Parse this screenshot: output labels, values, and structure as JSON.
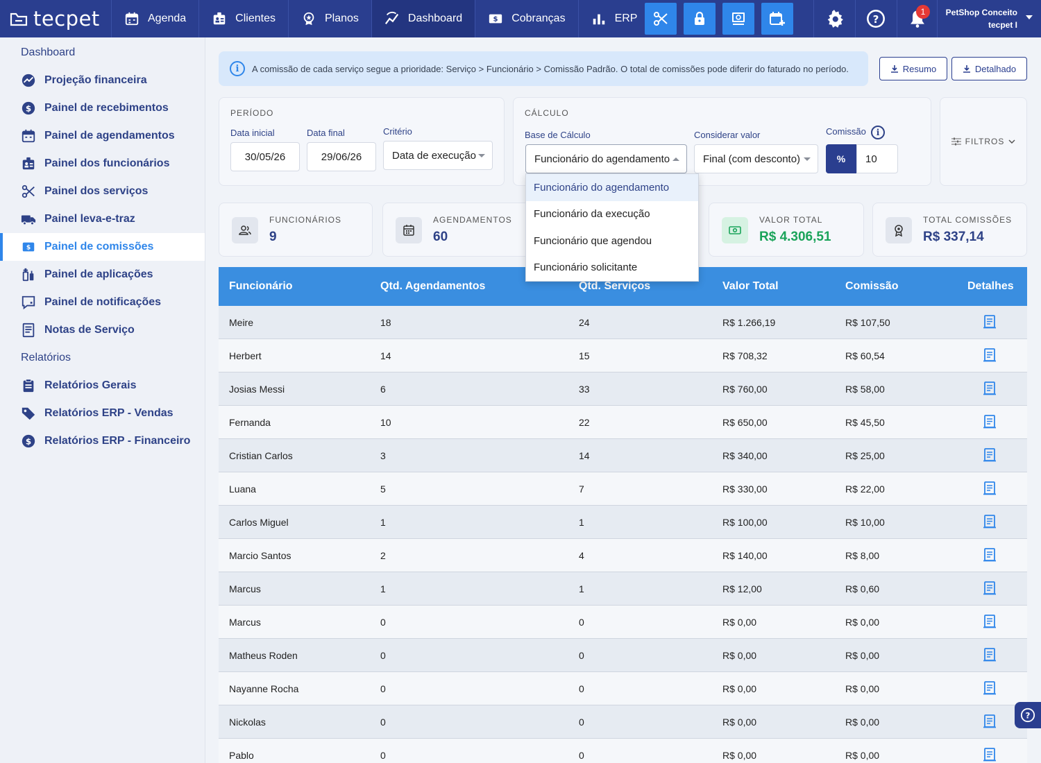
{
  "brand": {
    "logo_text": "tecpet"
  },
  "nav": {
    "items": [
      {
        "label": "Agenda",
        "icon": "calendar-icon"
      },
      {
        "label": "Clientes",
        "icon": "clients-icon"
      },
      {
        "label": "Planos",
        "icon": "plans-icon"
      },
      {
        "label": "Dashboard",
        "icon": "dashboard-icon",
        "active": true
      },
      {
        "label": "Cobranças",
        "icon": "billing-icon"
      },
      {
        "label": "ERP",
        "icon": "erp-icon"
      }
    ],
    "quick_actions": [
      "scissors-icon",
      "lock-icon",
      "monitor-icon",
      "calendar-add-icon"
    ],
    "notification_count": "1",
    "user": {
      "company": "PetShop Conceito",
      "name": "tecpet I"
    }
  },
  "sidebar": {
    "dashboard_section": "Dashboard",
    "dashboard_items": [
      {
        "label": "Projeção financeira",
        "icon": "chart-up-icon"
      },
      {
        "label": "Painel de recebimentos",
        "icon": "dollar-circle-icon"
      },
      {
        "label": "Painel de agendamentos",
        "icon": "calendar-icon"
      },
      {
        "label": "Painel dos funcionários",
        "icon": "badge-icon"
      },
      {
        "label": "Painel dos serviços",
        "icon": "scissors-icon"
      },
      {
        "label": "Painel leva-e-traz",
        "icon": "truck-icon"
      },
      {
        "label": "Painel de comissões",
        "icon": "money-icon",
        "active": true
      },
      {
        "label": "Painel de aplicações",
        "icon": "syringe-icon"
      },
      {
        "label": "Painel de notificações",
        "icon": "chat-icon"
      },
      {
        "label": "Notas de Serviço",
        "icon": "document-icon"
      }
    ],
    "reports_section": "Relatórios",
    "report_items": [
      {
        "label": "Relatórios Gerais",
        "icon": "clipboard-icon"
      },
      {
        "label": "Relatórios ERP - Vendas",
        "icon": "tag-icon"
      },
      {
        "label": "Relatórios ERP - Financeiro",
        "icon": "dollar-circle-icon"
      }
    ]
  },
  "alert": {
    "text": "A comissão de cada serviço segue a prioridade: Serviço > Funcionário > Comissão Padrão. O total de comissões pode diferir do faturado no período."
  },
  "export": {
    "summary": "Resumo",
    "detailed": "Detalhado"
  },
  "period": {
    "title": "PERÍODO",
    "start_label": "Data inicial",
    "start_value": "30/05/26",
    "end_label": "Data final",
    "end_value": "29/06/26",
    "criteria_label": "Critério",
    "criteria_value": "Data de execução"
  },
  "calc": {
    "title": "CÁLCULO",
    "base_label": "Base de Cálculo",
    "base_value": "Funcionário do agendamento",
    "consider_label": "Considerar valor",
    "consider_value": "Final (com desconto)",
    "commission_label": "Comissão",
    "commission_unit": "%",
    "commission_value": "10"
  },
  "filters": {
    "label": "FILTROS"
  },
  "base_options": [
    "Funcionário do agendamento",
    "Funcionário da execução",
    "Funcionário que agendou",
    "Funcionário solicitante"
  ],
  "stats": {
    "employees": {
      "label": "FUNCIONÁRIOS",
      "value": "9"
    },
    "appointments": {
      "label": "AGENDAMENTOS",
      "value": "60"
    },
    "total_value": {
      "label": "VALOR TOTAL",
      "value": "R$ 4.306,51"
    },
    "total_commissions": {
      "label": "TOTAL COMISSÕES",
      "value": "R$ 337,14"
    }
  },
  "table": {
    "headers": [
      "Funcionário",
      "Qtd. Agendamentos",
      "Qtd. Serviços",
      "Valor Total",
      "Comissão",
      "Detalhes"
    ],
    "rows": [
      [
        "Meire",
        "18",
        "24",
        "R$ 1.266,19",
        "R$ 107,50"
      ],
      [
        "Herbert",
        "14",
        "15",
        "R$ 708,32",
        "R$ 60,54"
      ],
      [
        "Josias Messi",
        "6",
        "33",
        "R$ 760,00",
        "R$ 58,00"
      ],
      [
        "Fernanda",
        "10",
        "22",
        "R$ 650,00",
        "R$ 45,50"
      ],
      [
        "Cristian Carlos",
        "3",
        "14",
        "R$ 340,00",
        "R$ 25,00"
      ],
      [
        "Luana",
        "5",
        "7",
        "R$ 330,00",
        "R$ 22,00"
      ],
      [
        "Carlos Miguel",
        "1",
        "1",
        "R$ 100,00",
        "R$ 10,00"
      ],
      [
        "Marcio Santos",
        "2",
        "4",
        "R$ 140,00",
        "R$ 8,00"
      ],
      [
        "Marcus",
        "1",
        "1",
        "R$ 12,00",
        "R$ 0,60"
      ],
      [
        "Marcus",
        "0",
        "0",
        "R$ 0,00",
        "R$ 0,00"
      ],
      [
        "Matheus Roden",
        "0",
        "0",
        "R$ 0,00",
        "R$ 0,00"
      ],
      [
        "Nayanne Rocha",
        "0",
        "0",
        "R$ 0,00",
        "R$ 0,00"
      ],
      [
        "Nickolas",
        "0",
        "0",
        "R$ 0,00",
        "R$ 0,00"
      ],
      [
        "Pablo",
        "0",
        "0",
        "R$ 0,00",
        "R$ 0,00"
      ]
    ]
  },
  "colors": {
    "nav_bg": "#2a3e8f",
    "accent": "#2f86ea",
    "table_header": "#3a8ee0",
    "green": "#1aa35a",
    "badge": "#e53935"
  }
}
